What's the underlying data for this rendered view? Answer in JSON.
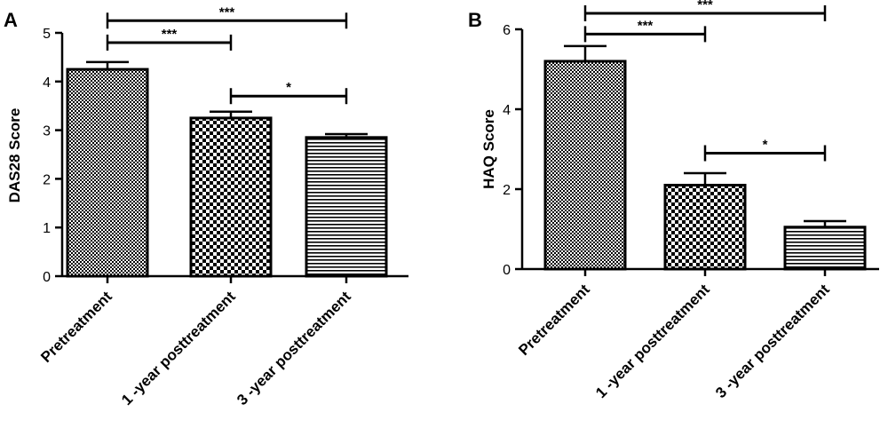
{
  "chart_data": [
    {
      "panel": "A",
      "type": "bar",
      "ylabel": "DAS28 Score",
      "xlabel": "",
      "ylim": [
        0,
        5
      ],
      "yticks": [
        0,
        1,
        2,
        3,
        4,
        5
      ],
      "categories": [
        "Pretreatment",
        "1 -year posttreatment",
        "3 -year posttreatment"
      ],
      "values": [
        4.25,
        3.25,
        2.85
      ],
      "errors": [
        0.15,
        0.13,
        0.07
      ],
      "patterns": [
        "fine-check",
        "coarse-check",
        "horizontal-lines"
      ],
      "significance": [
        {
          "from": 0,
          "to": 2,
          "label": "***",
          "y": 5.25
        },
        {
          "from": 0,
          "to": 1,
          "label": "***",
          "y": 4.8
        },
        {
          "from": 1,
          "to": 2,
          "label": "*",
          "y": 3.7
        }
      ]
    },
    {
      "panel": "B",
      "type": "bar",
      "ylabel": "HAQ Score",
      "xlabel": "",
      "ylim": [
        0,
        6
      ],
      "yticks": [
        0,
        2,
        4,
        6
      ],
      "categories": [
        "Pretreatment",
        "1 -year posttreatment",
        "3 -year posttreatment"
      ],
      "values": [
        5.2,
        2.1,
        1.05
      ],
      "errors": [
        0.38,
        0.3,
        0.15
      ],
      "patterns": [
        "fine-check",
        "coarse-check",
        "horizontal-lines"
      ],
      "significance": [
        {
          "from": 0,
          "to": 2,
          "label": "***",
          "y": 6.4
        },
        {
          "from": 0,
          "to": 1,
          "label": "***",
          "y": 5.88
        },
        {
          "from": 1,
          "to": 2,
          "label": "*",
          "y": 2.9
        }
      ]
    }
  ]
}
